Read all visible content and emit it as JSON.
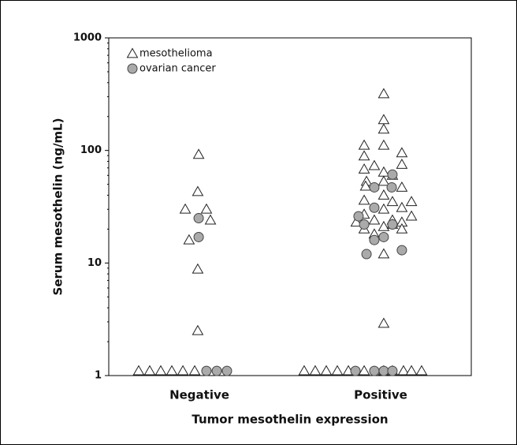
{
  "chart_data": {
    "type": "scatter",
    "x_label": "Tumor mesothelin expression",
    "y_label": "Serum mesothelin (ng/mL)",
    "xlim": [
      0.5,
      2.5
    ],
    "xticks": [
      {
        "value": 1,
        "label": "Negative"
      },
      {
        "value": 2,
        "label": "Positive"
      }
    ],
    "ylim": [
      1,
      1000
    ],
    "yticks": [
      1,
      10,
      100,
      1000
    ],
    "y_scale": "log",
    "legend": "top-left",
    "series": [
      {
        "name": "mesothelioma",
        "color": "#ffffff",
        "marker": "triangle",
        "x": [
          0.996,
          0.991,
          0.922,
          1.039,
          1.061,
          0.943,
          0.991,
          0.991,
          0.665,
          0.726,
          0.787,
          0.848,
          0.909,
          0.974,
          2.017,
          2.017,
          2.017,
          1.909,
          2.017,
          2.117,
          1.909,
          1.965,
          2.117,
          1.909,
          2.017,
          2.065,
          1.922,
          2.017,
          2.117,
          1.917,
          2.017,
          2.17,
          2.065,
          1.909,
          2.117,
          2.017,
          1.909,
          2.17,
          1.865,
          1.965,
          2.065,
          2.117,
          1.909,
          2.017,
          2.117,
          2.065,
          1.965,
          2.017,
          2.017,
          1.578,
          1.639,
          1.7,
          1.761,
          1.822,
          1.909,
          2.017,
          2.065,
          2.126,
          2.17,
          2.226
        ],
        "values": [
          92,
          43,
          30,
          30,
          24,
          16,
          8.8,
          2.5,
          1.1,
          1.1,
          1.1,
          1.1,
          1.1,
          1.1,
          318,
          187,
          154,
          111,
          111,
          95,
          89,
          73,
          75,
          68,
          64,
          60,
          53,
          53,
          47,
          48,
          40,
          35,
          35,
          36,
          31,
          30,
          27,
          26,
          23,
          24,
          24,
          23,
          20,
          21,
          20,
          22,
          18,
          12,
          2.9,
          1.1,
          1.1,
          1.1,
          1.1,
          1.1,
          1.1,
          1.1,
          1.1,
          1.1,
          1.1,
          1.1
        ]
      },
      {
        "name": "ovarian cancer",
        "color": "#aaaaaa",
        "marker": "circle",
        "x": [
          0.996,
          0.996,
          1.039,
          1.096,
          1.152,
          1.878,
          1.965,
          2.061,
          2.065,
          1.965,
          1.909,
          2.065,
          2.017,
          1.965,
          1.922,
          2.117,
          1.861,
          1.965,
          2.017,
          2.065
        ],
        "values": [
          25,
          17,
          1.1,
          1.1,
          1.1,
          26,
          47,
          47,
          61,
          31,
          22,
          22,
          17,
          16,
          12,
          13,
          1.1,
          1.1,
          1.1,
          1.1
        ]
      }
    ]
  }
}
